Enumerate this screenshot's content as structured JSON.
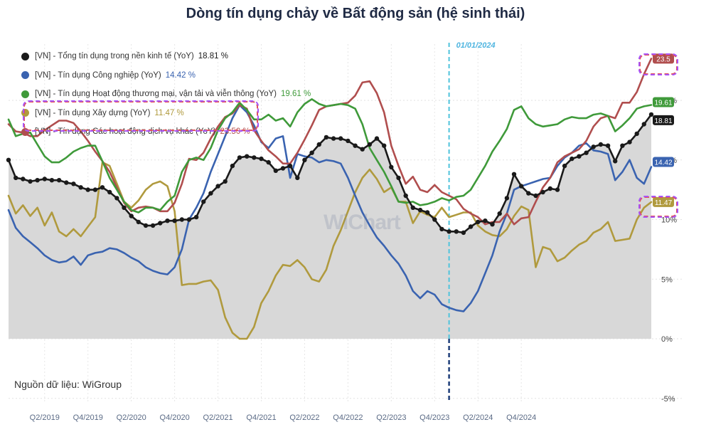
{
  "chart_data": {
    "type": "line",
    "title": "Dòng tín dụng chảy về Bất động sản (hệ sinh thái)",
    "ylim": [
      -5,
      25
    ],
    "y_ticks": [
      -5,
      0,
      5,
      10,
      15,
      20
    ],
    "y_tick_labels": [
      "-5%",
      "0%",
      "5%",
      "10%",
      "15%",
      "20%"
    ],
    "y_axis_position": "right",
    "x_tick_labels": [
      "Q2/2019",
      "Q4/2019",
      "Q2/2020",
      "Q4/2020",
      "Q2/2021",
      "Q4/2021",
      "Q2/2022",
      "Q4/2022",
      "Q2/2023",
      "Q4/2023",
      "Q2/2024",
      "Q4/2024"
    ],
    "x_range_months": [
      "2018-12",
      "2024-12"
    ],
    "grid": true,
    "legend_placement": "top-left",
    "vline": {
      "label": "01/01/2024",
      "date": "2024-01"
    },
    "series": [
      {
        "name": "[VN] - Tổng tín dụng trong nền kinh tế (YoY)",
        "last_value_label": "18.81 %",
        "end_label": "18.81",
        "color": "#1a1a1a",
        "markers": true,
        "filled_area": true,
        "values": [
          15.0,
          13.5,
          13.4,
          13.2,
          13.3,
          13.4,
          13.3,
          13.3,
          13.1,
          13.0,
          12.7,
          12.5,
          12.5,
          12.7,
          12.3,
          11.8,
          11.0,
          10.3,
          9.8,
          9.5,
          9.5,
          9.7,
          9.9,
          9.9,
          10.0,
          10.0,
          10.2,
          11.5,
          12.2,
          12.8,
          13.2,
          14.5,
          15.2,
          15.3,
          15.2,
          15.1,
          14.8,
          14.1,
          14.3,
          14.5,
          13.5,
          15.0,
          15.6,
          16.3,
          16.9,
          16.8,
          16.8,
          16.6,
          16.2,
          15.9,
          16.3,
          16.8,
          16.2,
          14.4,
          13.5,
          12.0,
          11.0,
          10.8,
          10.6,
          10.0,
          9.2,
          9.0,
          9.0,
          8.9,
          9.4,
          9.8,
          9.9,
          9.6,
          10.5,
          11.8,
          13.8,
          12.8,
          12.2,
          12.0,
          12.3,
          12.6,
          12.5,
          14.5,
          15.1,
          15.3,
          15.6,
          16.1,
          16.3,
          16.2,
          14.9,
          16.2,
          16.5,
          17.2,
          18.0,
          18.81
        ]
      },
      {
        "name": "[VN] - Tín dụng Công nghiệp (YoY)",
        "last_value_label": "14.42 %",
        "end_label": "14.42",
        "color": "#3a63b0",
        "markers": false,
        "filled_area": false,
        "values": [
          10.8,
          9.3,
          8.6,
          8.1,
          7.6,
          7.0,
          6.6,
          6.4,
          6.5,
          6.9,
          6.2,
          7.0,
          7.2,
          7.3,
          7.6,
          7.5,
          7.2,
          6.8,
          6.5,
          6.0,
          5.7,
          5.5,
          5.4,
          6.0,
          7.5,
          10.0,
          11.0,
          12.2,
          14.0,
          15.5,
          17.0,
          18.5,
          19.6,
          19.0,
          17.9,
          16.5,
          16.0,
          16.8,
          17.0,
          13.5,
          15.5,
          15.3,
          15.2,
          14.8,
          15.0,
          14.9,
          14.7,
          13.5,
          12.0,
          10.6,
          9.5,
          8.5,
          7.8,
          7.0,
          6.3,
          5.3,
          4.0,
          3.4,
          4.0,
          3.7,
          2.9,
          2.6,
          2.4,
          2.3,
          3.0,
          4.0,
          5.5,
          7.0,
          9.0,
          10.5,
          12.5,
          12.8,
          13.0,
          13.2,
          13.4,
          13.5,
          14.5,
          15.2,
          15.6,
          16.2,
          16.4,
          15.8,
          15.7,
          15.5,
          13.3,
          14.0,
          15.0,
          13.5,
          13.0,
          14.42
        ]
      },
      {
        "name": "[VN] - Tín dụng Hoạt động thương mại, vận tải và viễn thông (YoY)",
        "last_value_label": "19.61 %",
        "end_label": "19.61",
        "color": "#3f9a3a",
        "markers": false,
        "filled_area": false,
        "values": [
          18.4,
          17.0,
          17.2,
          17.3,
          16.3,
          15.3,
          14.8,
          14.8,
          15.2,
          15.7,
          16.0,
          16.2,
          16.2,
          14.9,
          13.5,
          12.5,
          11.5,
          10.8,
          10.6,
          11.0,
          11.0,
          10.8,
          11.5,
          12.0,
          14.0,
          15.0,
          15.2,
          15.0,
          16.0,
          17.5,
          18.5,
          19.0,
          19.8,
          19.2,
          18.4,
          18.4,
          18.8,
          18.3,
          18.5,
          17.8,
          19.0,
          19.7,
          20.1,
          19.7,
          19.5,
          19.6,
          19.7,
          19.6,
          19.3,
          18.0,
          16.0,
          15.0,
          14.0,
          12.8,
          11.5,
          11.4,
          11.5,
          11.2,
          11.3,
          11.5,
          11.8,
          11.6,
          11.9,
          12.0,
          12.5,
          13.5,
          14.5,
          15.7,
          16.6,
          17.6,
          19.2,
          19.5,
          18.5,
          18.0,
          17.8,
          17.9,
          18.0,
          18.4,
          18.6,
          18.5,
          18.5,
          18.8,
          18.9,
          18.7,
          17.4,
          17.9,
          18.5,
          19.3,
          19.5,
          19.61
        ]
      },
      {
        "name": "[VN] - Tín dụng Xây dựng (YoY)",
        "last_value_label": "11.47 %",
        "end_label": "11.47",
        "color": "#b09a3e",
        "markers": false,
        "filled_area": false,
        "values": [
          12.0,
          10.5,
          11.2,
          10.3,
          11.0,
          9.5,
          10.6,
          9.0,
          8.6,
          9.2,
          8.6,
          9.4,
          10.2,
          14.8,
          14.5,
          13.0,
          11.5,
          11.0,
          11.6,
          12.5,
          13.0,
          13.2,
          12.8,
          10.7,
          4.5,
          4.6,
          4.6,
          4.8,
          4.9,
          4.1,
          1.8,
          0.5,
          0.0,
          0.0,
          1.0,
          3.0,
          4.0,
          5.3,
          6.2,
          6.1,
          6.6,
          6.0,
          5.0,
          4.8,
          5.8,
          7.8,
          9.1,
          10.7,
          12.3,
          13.5,
          14.2,
          13.4,
          12.3,
          12.7,
          11.5,
          11.5,
          9.7,
          10.7,
          10.4,
          10.2,
          11.0,
          10.2,
          10.4,
          10.6,
          10.6,
          9.5,
          9.0,
          8.7,
          8.6,
          9.2,
          10.3,
          11.1,
          10.8,
          6.0,
          7.7,
          7.5,
          6.5,
          6.8,
          7.4,
          7.9,
          8.2,
          8.9,
          9.2,
          9.8,
          8.2,
          8.3,
          8.4,
          10.0,
          11.0,
          11.47
        ]
      },
      {
        "name": "[VN] - Tín dụng Các hoạt động dịch vụ khác (YoY)",
        "last_value_label": "23.50 %",
        "end_label": "23.5",
        "color": "#b04e4e",
        "markers": false,
        "filled_area": false,
        "values": [
          18.0,
          17.4,
          17.3,
          17.0,
          17.0,
          17.5,
          17.9,
          18.3,
          18.3,
          18.1,
          17.4,
          16.6,
          15.7,
          14.9,
          14.0,
          12.7,
          11.4,
          10.7,
          11.0,
          11.1,
          11.0,
          10.7,
          10.7,
          11.4,
          13.0,
          15.1,
          15.0,
          15.6,
          16.8,
          17.8,
          18.6,
          18.9,
          19.6,
          19.3,
          17.5,
          16.6,
          15.8,
          15.3,
          14.7,
          14.7,
          15.6,
          16.7,
          17.9,
          19.2,
          19.5,
          19.6,
          19.7,
          19.8,
          20.4,
          21.5,
          21.6,
          20.6,
          19.0,
          16.2,
          14.5,
          13.0,
          13.6,
          12.5,
          12.3,
          12.9,
          12.3,
          12.0,
          11.7,
          10.9,
          10.5,
          10.2,
          9.6,
          9.8,
          9.8,
          10.5,
          9.6,
          10.1,
          10.2,
          11.5,
          12.7,
          13.5,
          14.8,
          15.3,
          15.6,
          15.9,
          16.6,
          17.8,
          18.5,
          18.7,
          18.5,
          19.8,
          19.8,
          20.7,
          22.2,
          23.5
        ]
      }
    ]
  },
  "source_text": "Nguồn dữ liệu: WiGroup",
  "watermark_text": "WiChart"
}
